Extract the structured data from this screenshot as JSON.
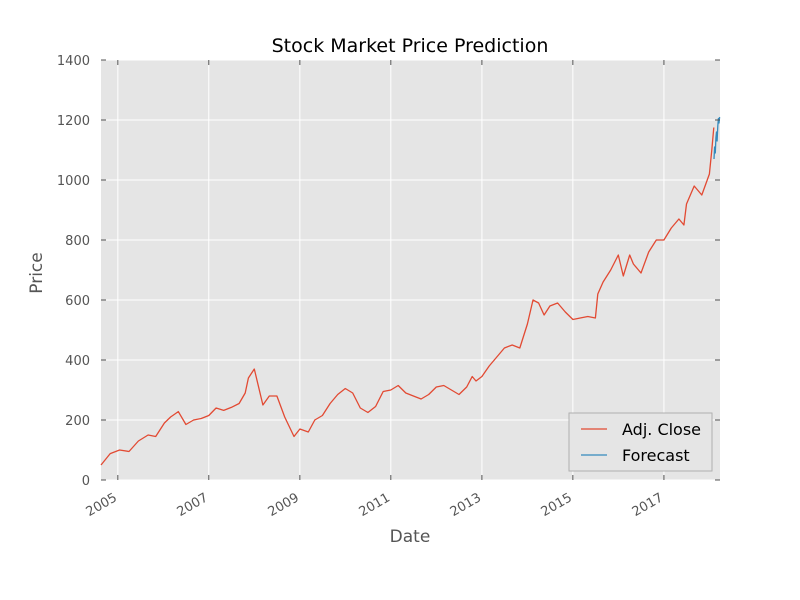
{
  "chart_data": {
    "type": "line",
    "title": "Stock Market Price Prediction",
    "xlabel": "Date",
    "ylabel": "Price",
    "xlim": [
      "2004-08-19",
      "2018-03-27"
    ],
    "ylim": [
      0,
      1400
    ],
    "yticks": [
      0,
      200,
      400,
      600,
      800,
      1000,
      1200,
      1400
    ],
    "xticks": [
      "2005",
      "2007",
      "2009",
      "2011",
      "2013",
      "2015",
      "2017"
    ],
    "grid": true,
    "legend_position": "lower-right",
    "colors": {
      "background": "#e5e5e5",
      "adj_close": "#e24a33",
      "forecast": "#348abd",
      "grid": "#ffffff"
    },
    "series": [
      {
        "name": "Adj. Close",
        "color": "#e24a33",
        "x": [
          "2004-08-19",
          "2004-11-01",
          "2005-01-15",
          "2005-04-01",
          "2005-06-15",
          "2005-09-01",
          "2005-11-01",
          "2006-01-10",
          "2006-03-01",
          "2006-05-01",
          "2006-07-01",
          "2006-09-01",
          "2006-11-01",
          "2007-01-01",
          "2007-03-01",
          "2007-05-01",
          "2007-07-01",
          "2007-09-01",
          "2007-10-20",
          "2007-11-15",
          "2008-01-01",
          "2008-03-10",
          "2008-05-01",
          "2008-07-01",
          "2008-09-01",
          "2008-11-15",
          "2009-01-01",
          "2009-03-10",
          "2009-05-01",
          "2009-07-01",
          "2009-09-01",
          "2009-11-01",
          "2010-01-01",
          "2010-03-01",
          "2010-05-01",
          "2010-07-01",
          "2010-09-01",
          "2010-11-01",
          "2011-01-01",
          "2011-03-01",
          "2011-05-01",
          "2011-07-01",
          "2011-09-01",
          "2011-11-01",
          "2012-01-01",
          "2012-03-01",
          "2012-05-01",
          "2012-07-01",
          "2012-09-01",
          "2012-10-15",
          "2012-11-15",
          "2013-01-01",
          "2013-03-01",
          "2013-05-01",
          "2013-07-01",
          "2013-09-01",
          "2013-11-01",
          "2014-01-01",
          "2014-02-15",
          "2014-04-01",
          "2014-05-15",
          "2014-07-01",
          "2014-09-01",
          "2014-11-01",
          "2015-01-01",
          "2015-03-01",
          "2015-05-01",
          "2015-07-01",
          "2015-07-20",
          "2015-09-01",
          "2015-11-01",
          "2016-01-01",
          "2016-02-10",
          "2016-04-01",
          "2016-05-01",
          "2016-07-01",
          "2016-09-01",
          "2016-11-01",
          "2017-01-01",
          "2017-03-01",
          "2017-05-01",
          "2017-06-10",
          "2017-07-01",
          "2017-09-01",
          "2017-11-01",
          "2018-01-01",
          "2018-01-20",
          "2018-02-05"
        ],
        "y": [
          50,
          88,
          100,
          95,
          130,
          150,
          145,
          190,
          210,
          228,
          185,
          200,
          205,
          215,
          240,
          232,
          242,
          255,
          290,
          340,
          370,
          250,
          280,
          280,
          210,
          145,
          170,
          160,
          200,
          215,
          255,
          285,
          305,
          290,
          240,
          225,
          245,
          295,
          300,
          315,
          290,
          280,
          270,
          285,
          310,
          315,
          300,
          285,
          310,
          345,
          330,
          345,
          380,
          410,
          440,
          450,
          440,
          520,
          600,
          590,
          550,
          580,
          590,
          560,
          535,
          540,
          545,
          540,
          620,
          660,
          700,
          750,
          680,
          750,
          720,
          690,
          760,
          800,
          800,
          840,
          870,
          850,
          920,
          980,
          950,
          1020,
          1100,
          1175
        ]
      },
      {
        "name": "Forecast",
        "color": "#348abd",
        "x": [
          "2018-02-07",
          "2018-02-12",
          "2018-02-17",
          "2018-02-22",
          "2018-02-27",
          "2018-03-04",
          "2018-03-09",
          "2018-03-14",
          "2018-03-19",
          "2018-03-24"
        ],
        "y": [
          1070,
          1110,
          1090,
          1140,
          1160,
          1130,
          1180,
          1205,
          1190,
          1210
        ]
      }
    ]
  }
}
